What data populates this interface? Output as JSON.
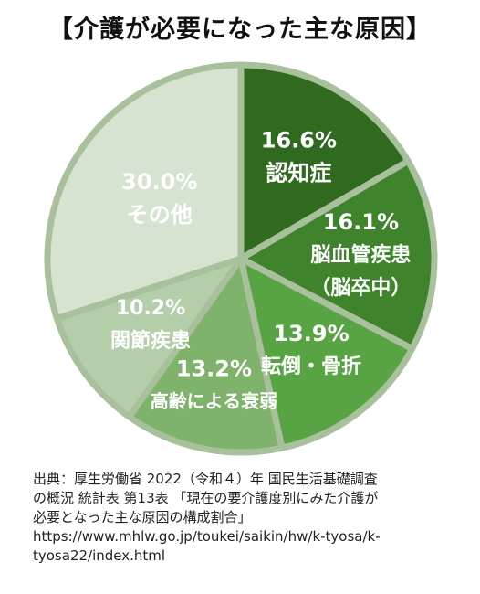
{
  "chart_data": {
    "type": "pie",
    "title": "【介護が必要になった主な原因】",
    "start_angle_deg": 0,
    "direction": "clockwise",
    "slices": [
      {
        "label": "認知症",
        "label_lines": [
          "16.6%",
          "認知症"
        ],
        "value": 16.6,
        "color": "#2f6a1f"
      },
      {
        "label": "脳血管疾患（脳卒中）",
        "label_lines": [
          "16.1%",
          "脳血管疾患",
          "（脳卒中）"
        ],
        "value": 16.1,
        "color": "#3f842c"
      },
      {
        "label": "転倒・骨折",
        "label_lines": [
          "13.9%",
          "転倒・骨折"
        ],
        "value": 13.9,
        "color": "#58a445"
      },
      {
        "label": "高齢による衰弱",
        "label_lines": [
          "13.2%",
          "高齢による衰弱"
        ],
        "value": 13.2,
        "color": "#7fb26b"
      },
      {
        "label": "関節疾患",
        "label_lines": [
          "10.2%",
          "関節疾患"
        ],
        "value": 10.2,
        "color": "#b4ceaa"
      },
      {
        "label": "その他",
        "label_lines": [
          "30.0%",
          "その他"
        ],
        "value": 30.0,
        "color": "#d6e3d0"
      }
    ],
    "slice_border_color": "#a9c09d"
  },
  "source": {
    "lines": [
      "出典：厚生労働省 2022（令和４）年 国民生活基礎調査",
      "の概況 統計表 第13表 「現在の要介護度別にみた介護が",
      "必要となった主な原因の構成割合」",
      " https://www.mhlw.go.jp/toukei/saikin/hw/k-tyosa/k-",
      "tyosa22/index.html"
    ]
  }
}
